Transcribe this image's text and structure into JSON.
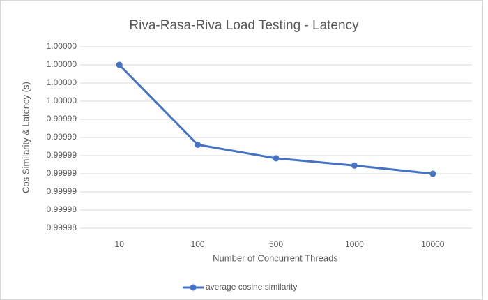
{
  "chart_data": {
    "type": "line",
    "title": "Riva-Rasa-Riva Load Testing - Latency",
    "x_label": "Number of Concurrent Threads",
    "y_label": "Cos Similarity & Latency (s)",
    "categories": [
      "10",
      "100",
      "500",
      "1000",
      "10000"
    ],
    "series": [
      {
        "name": "average cosine similarity",
        "color": "#4472c4",
        "values": [
          1.0,
          0.9999912,
          0.9999897,
          0.9999889,
          0.999988
        ]
      }
    ],
    "ylim": [
      0.999982,
      1.000002
    ],
    "yticks": [
      {
        "value": 0.999982,
        "label": "0.99998"
      },
      {
        "value": 0.999984,
        "label": "0.99998"
      },
      {
        "value": 0.999986,
        "label": "0.99999"
      },
      {
        "value": 0.999988,
        "label": "0.99999"
      },
      {
        "value": 0.99999,
        "label": "0.99999"
      },
      {
        "value": 0.999992,
        "label": "0.99999"
      },
      {
        "value": 0.999994,
        "label": "0.99999"
      },
      {
        "value": 0.999996,
        "label": "1.00000"
      },
      {
        "value": 0.999998,
        "label": "1.00000"
      },
      {
        "value": 1.0,
        "label": "1.00000"
      },
      {
        "value": 1.000002,
        "label": "1.00000"
      }
    ],
    "grid": true,
    "legend": "bottom"
  }
}
